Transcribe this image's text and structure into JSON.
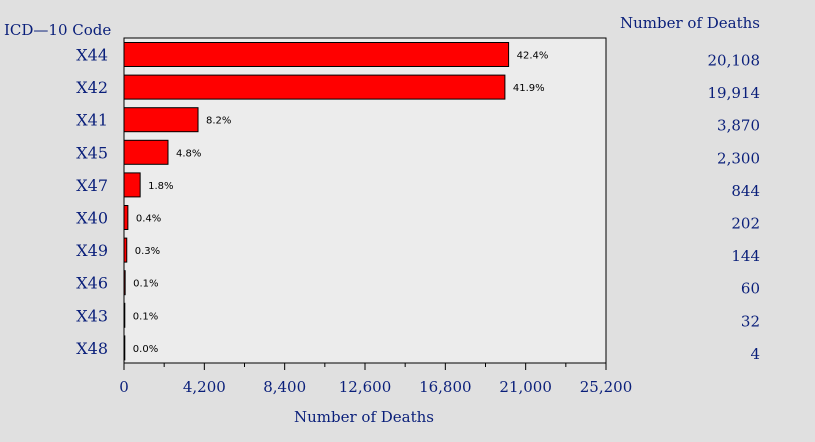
{
  "chart_data": {
    "type": "bar",
    "orientation": "horizontal",
    "category_header": "ICD—10 Code",
    "value_header": "Number of Deaths",
    "xlabel": "Number of Deaths",
    "categories": [
      "X44",
      "X42",
      "X41",
      "X45",
      "X47",
      "X40",
      "X49",
      "X46",
      "X43",
      "X48"
    ],
    "values": [
      20108,
      19914,
      3870,
      2300,
      844,
      202,
      144,
      60,
      32,
      4
    ],
    "value_labels": [
      "20,108",
      "19,914",
      "3,870",
      "2,300",
      "844",
      "202",
      "144",
      "60",
      "32",
      "4"
    ],
    "percent_labels": [
      "42.4%",
      "41.9%",
      "8.2%",
      "4.8%",
      "1.8%",
      "0.4%",
      "0.3%",
      "0.1%",
      "0.1%",
      "0.0%"
    ],
    "xticks": [
      "0",
      "4,200",
      "8,400",
      "12,600",
      "16,800",
      "21,000",
      "25,200"
    ],
    "xtick_values": [
      0,
      4200,
      8400,
      12600,
      16800,
      21000,
      25200
    ],
    "xlim": [
      0,
      25200
    ],
    "grid": false,
    "colors": {
      "bar": "#ff0000",
      "text": "#0a1f7a",
      "plot_bg": "#ececec",
      "page_bg": "#e0e0e0"
    }
  }
}
